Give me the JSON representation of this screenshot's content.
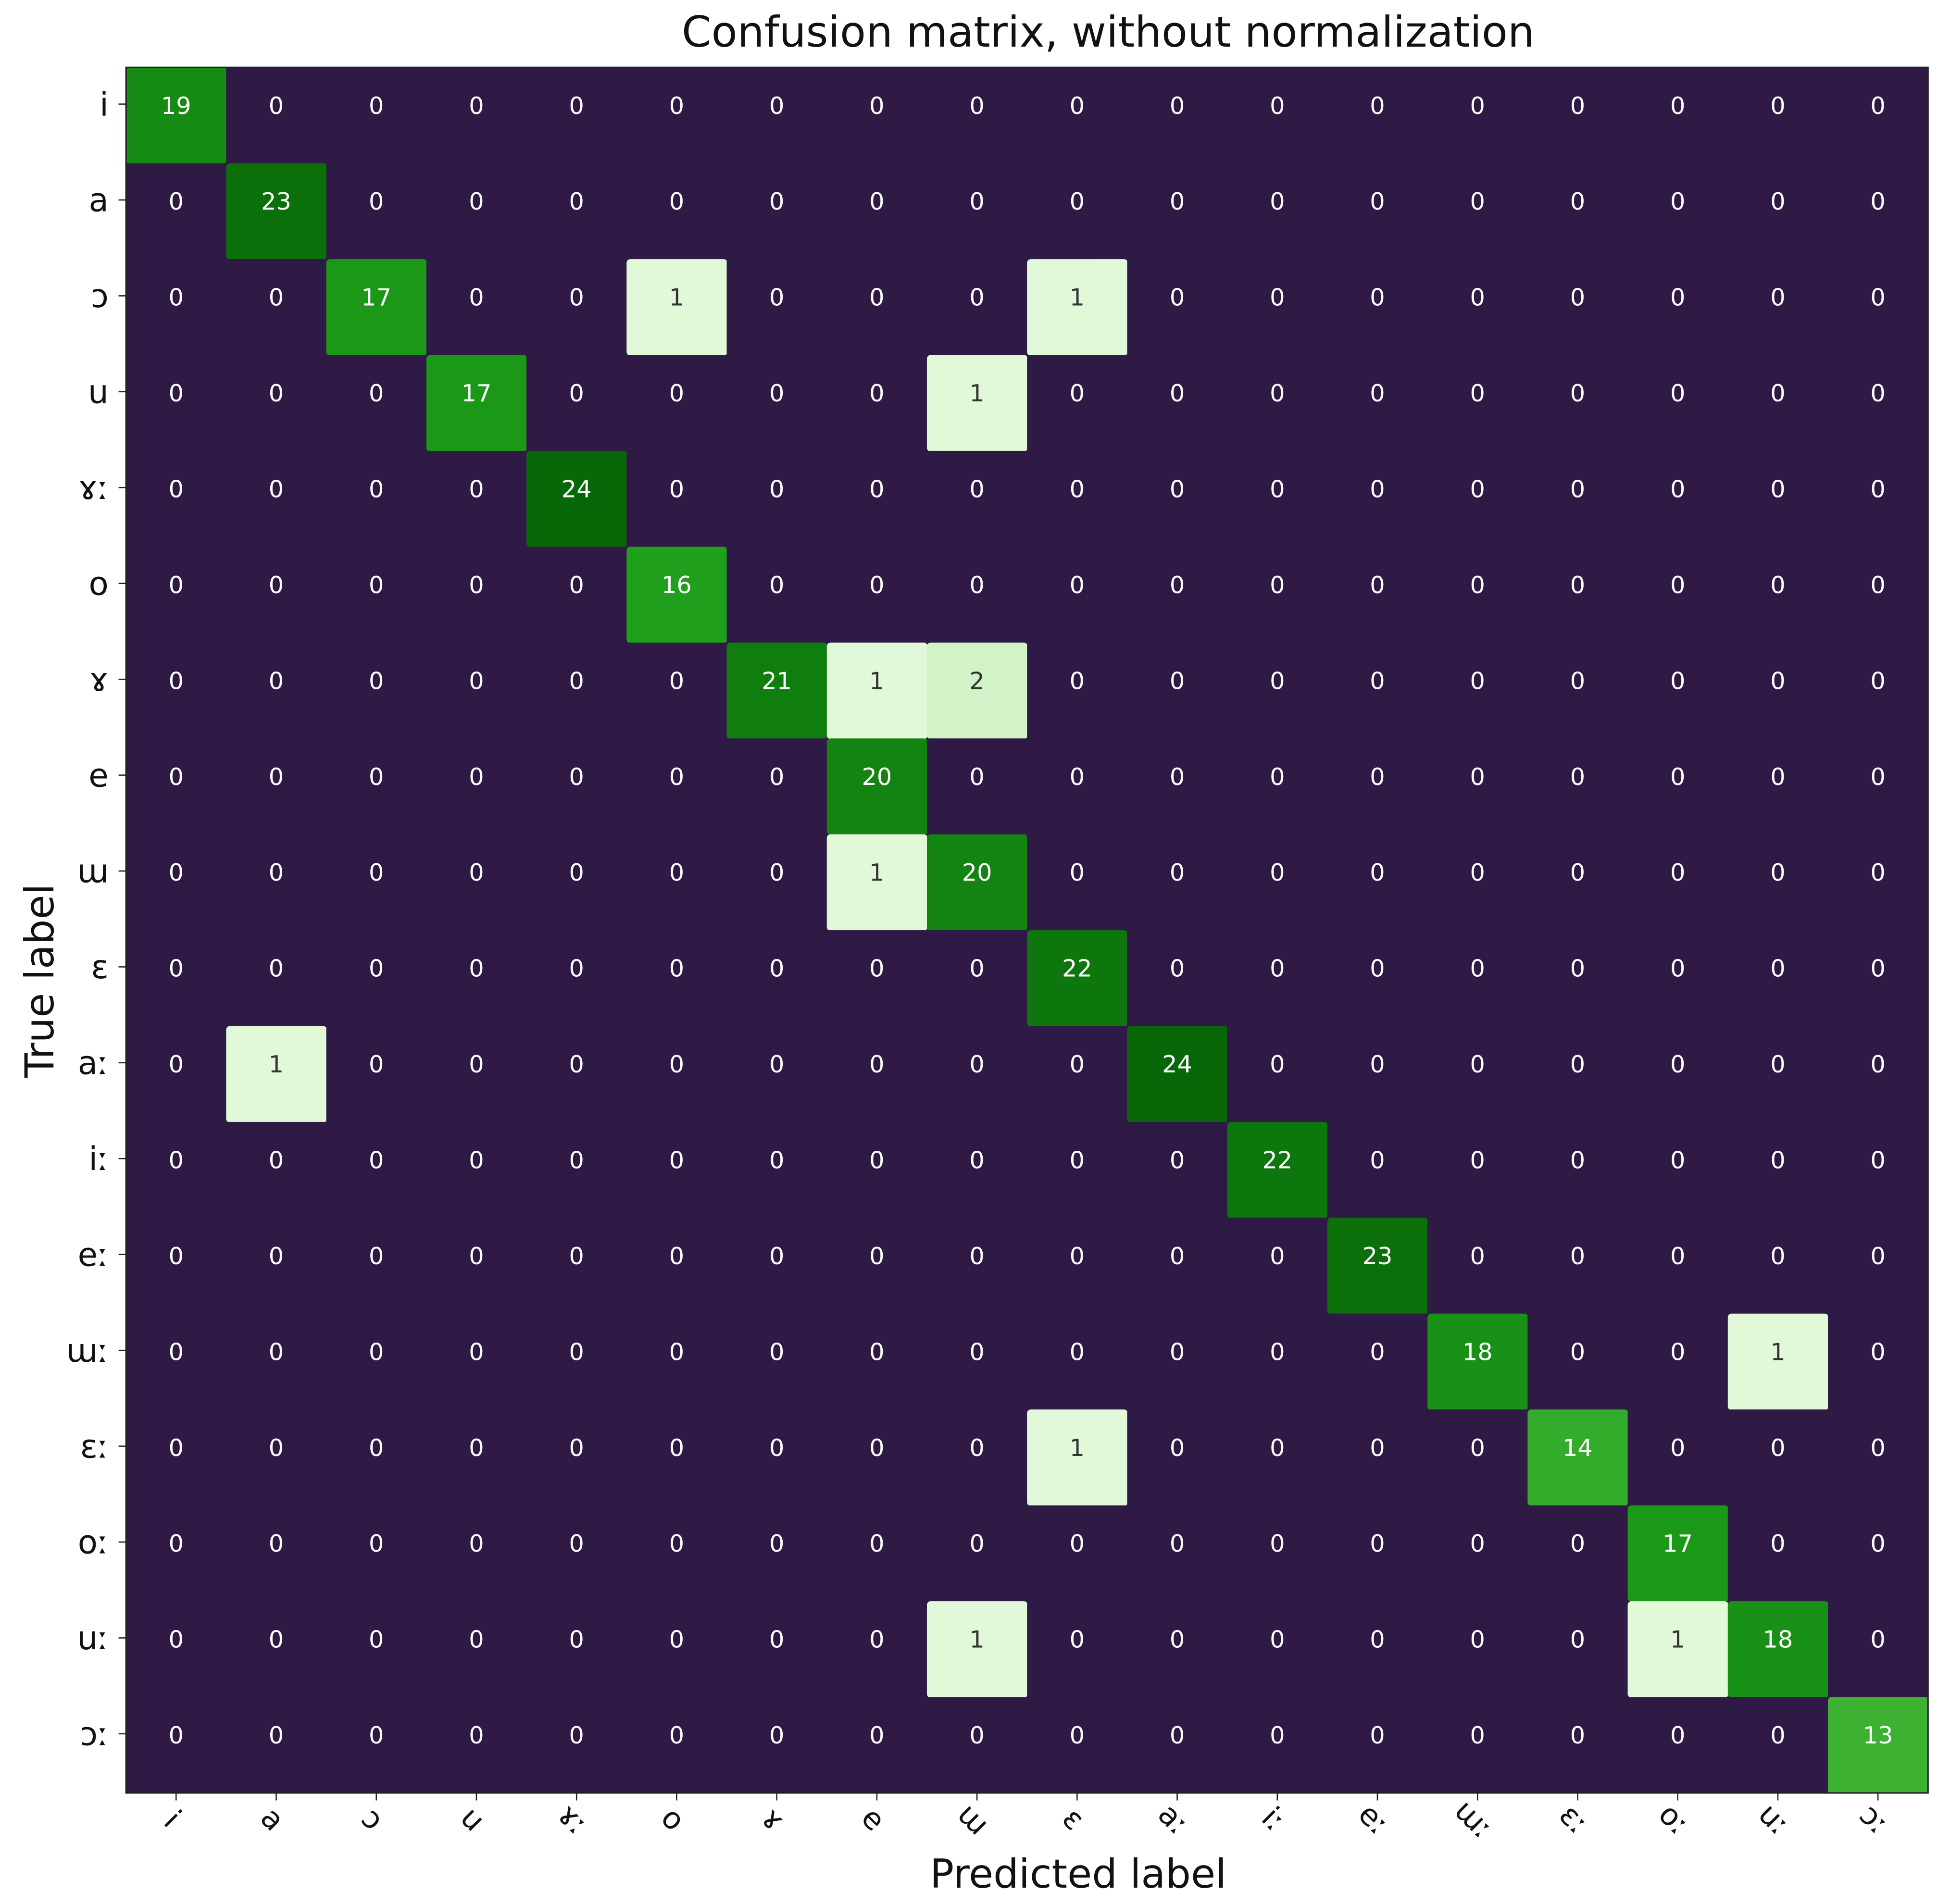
{
  "chart_data": {
    "type": "heatmap",
    "title": "Confusion matrix, without normalization",
    "xlabel": "Predicted label",
    "ylabel": "True label",
    "x_categories": [
      "i",
      "a",
      "ɔ",
      "u",
      "ɤː",
      "o",
      "ɤ",
      "e",
      "ɯ",
      "ɛ",
      "aː",
      "iː",
      "eː",
      "ɯː",
      "ɛː",
      "oː",
      "uː",
      "ɔː"
    ],
    "y_categories": [
      "i",
      "a",
      "ɔ",
      "u",
      "ɤː",
      "o",
      "ɤ",
      "e",
      "ɯ",
      "ɛ",
      "aː",
      "iː",
      "eː",
      "ɯː",
      "ɛː",
      "oː",
      "uː",
      "ɔː"
    ],
    "values": [
      [
        19,
        0,
        0,
        0,
        0,
        0,
        0,
        0,
        0,
        0,
        0,
        0,
        0,
        0,
        0,
        0,
        0,
        0
      ],
      [
        0,
        23,
        0,
        0,
        0,
        0,
        0,
        0,
        0,
        0,
        0,
        0,
        0,
        0,
        0,
        0,
        0,
        0
      ],
      [
        0,
        0,
        17,
        0,
        0,
        1,
        0,
        0,
        0,
        1,
        0,
        0,
        0,
        0,
        0,
        0,
        0,
        0
      ],
      [
        0,
        0,
        0,
        17,
        0,
        0,
        0,
        0,
        1,
        0,
        0,
        0,
        0,
        0,
        0,
        0,
        0,
        0
      ],
      [
        0,
        0,
        0,
        0,
        24,
        0,
        0,
        0,
        0,
        0,
        0,
        0,
        0,
        0,
        0,
        0,
        0,
        0
      ],
      [
        0,
        0,
        0,
        0,
        0,
        16,
        0,
        0,
        0,
        0,
        0,
        0,
        0,
        0,
        0,
        0,
        0,
        0
      ],
      [
        0,
        0,
        0,
        0,
        0,
        0,
        21,
        1,
        2,
        0,
        0,
        0,
        0,
        0,
        0,
        0,
        0,
        0
      ],
      [
        0,
        0,
        0,
        0,
        0,
        0,
        0,
        20,
        0,
        0,
        0,
        0,
        0,
        0,
        0,
        0,
        0,
        0
      ],
      [
        0,
        0,
        0,
        0,
        0,
        0,
        0,
        1,
        20,
        0,
        0,
        0,
        0,
        0,
        0,
        0,
        0,
        0
      ],
      [
        0,
        0,
        0,
        0,
        0,
        0,
        0,
        0,
        0,
        22,
        0,
        0,
        0,
        0,
        0,
        0,
        0,
        0
      ],
      [
        0,
        1,
        0,
        0,
        0,
        0,
        0,
        0,
        0,
        0,
        24,
        0,
        0,
        0,
        0,
        0,
        0,
        0
      ],
      [
        0,
        0,
        0,
        0,
        0,
        0,
        0,
        0,
        0,
        0,
        0,
        22,
        0,
        0,
        0,
        0,
        0,
        0
      ],
      [
        0,
        0,
        0,
        0,
        0,
        0,
        0,
        0,
        0,
        0,
        0,
        0,
        23,
        0,
        0,
        0,
        0,
        0
      ],
      [
        0,
        0,
        0,
        0,
        0,
        0,
        0,
        0,
        0,
        0,
        0,
        0,
        0,
        18,
        0,
        0,
        1,
        0
      ],
      [
        0,
        0,
        0,
        0,
        0,
        0,
        0,
        0,
        0,
        1,
        0,
        0,
        0,
        0,
        14,
        0,
        0,
        0
      ],
      [
        0,
        0,
        0,
        0,
        0,
        0,
        0,
        0,
        0,
        0,
        0,
        0,
        0,
        0,
        0,
        17,
        0,
        0
      ],
      [
        0,
        0,
        0,
        0,
        0,
        0,
        0,
        0,
        1,
        0,
        0,
        0,
        0,
        0,
        0,
        1,
        18,
        0
      ],
      [
        0,
        0,
        0,
        0,
        0,
        0,
        0,
        0,
        0,
        0,
        0,
        0,
        0,
        0,
        0,
        0,
        0,
        13
      ]
    ],
    "zero_color": "#2f1945",
    "colormap": [
      "#e1f9d9",
      "#66cb52",
      "#1d9d1a",
      "#086808"
    ]
  }
}
